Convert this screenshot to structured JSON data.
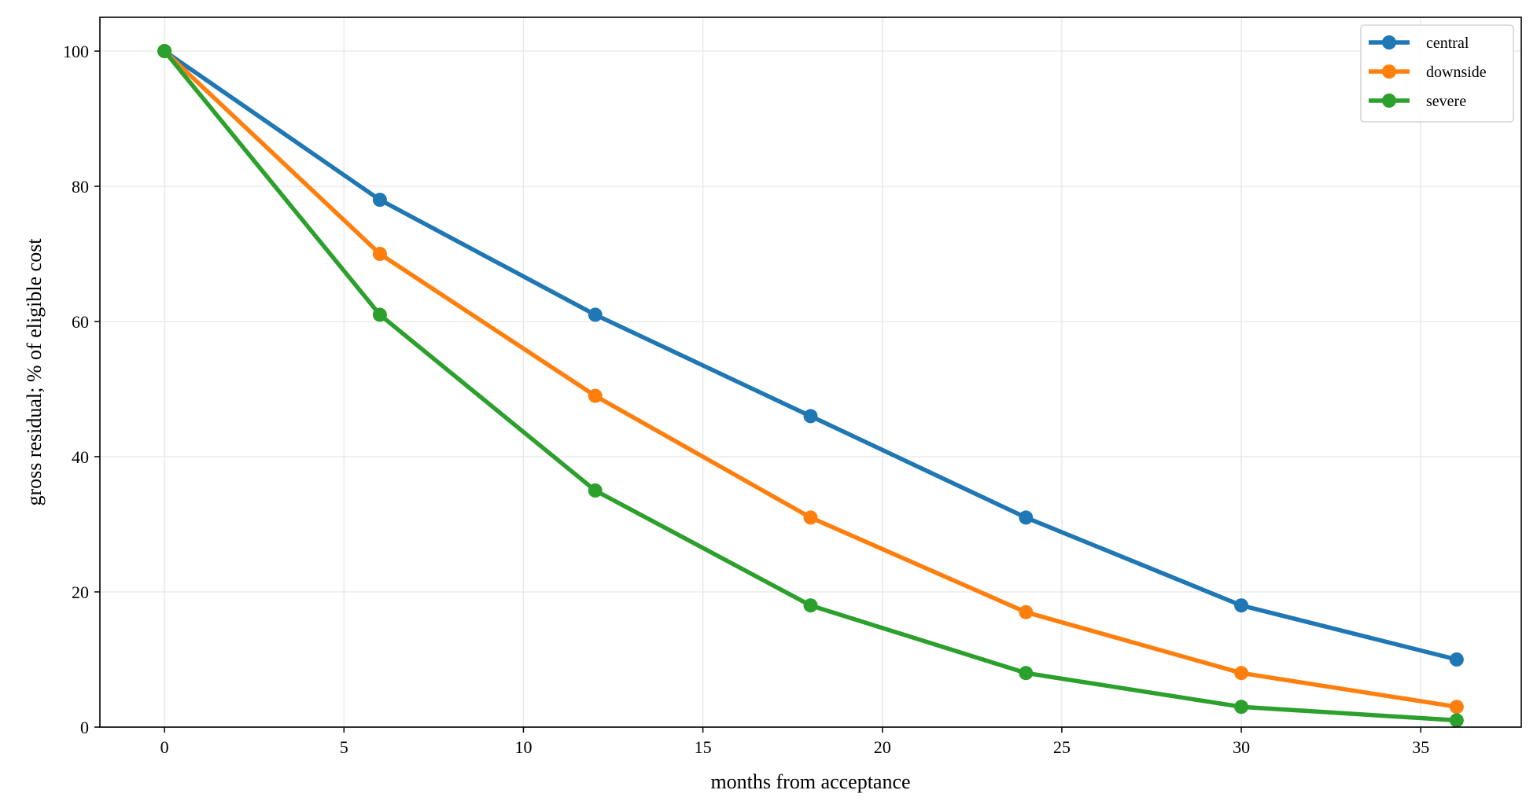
{
  "chart_data": {
    "type": "line",
    "title": "",
    "xlabel": "months from acceptance",
    "ylabel": "gross residual; % of eligible cost",
    "xlim": [
      -1.8,
      37.8
    ],
    "ylim": [
      0,
      105
    ],
    "xticks": [
      0,
      5,
      10,
      15,
      20,
      25,
      30,
      35
    ],
    "yticks": [
      0,
      20,
      40,
      60,
      80,
      100
    ],
    "grid": true,
    "legend_position": "top-right",
    "x": [
      0,
      6,
      12,
      18,
      24,
      30,
      36
    ],
    "series": [
      {
        "name": "central",
        "color": "#1f77b4",
        "values": [
          100,
          78,
          61,
          46,
          31,
          18,
          10
        ]
      },
      {
        "name": "downside",
        "color": "#ff7f0e",
        "values": [
          100,
          70,
          49,
          31,
          17,
          8,
          3
        ]
      },
      {
        "name": "severe",
        "color": "#2ca02c",
        "values": [
          100,
          61,
          35,
          18,
          8,
          3,
          1
        ]
      }
    ]
  }
}
